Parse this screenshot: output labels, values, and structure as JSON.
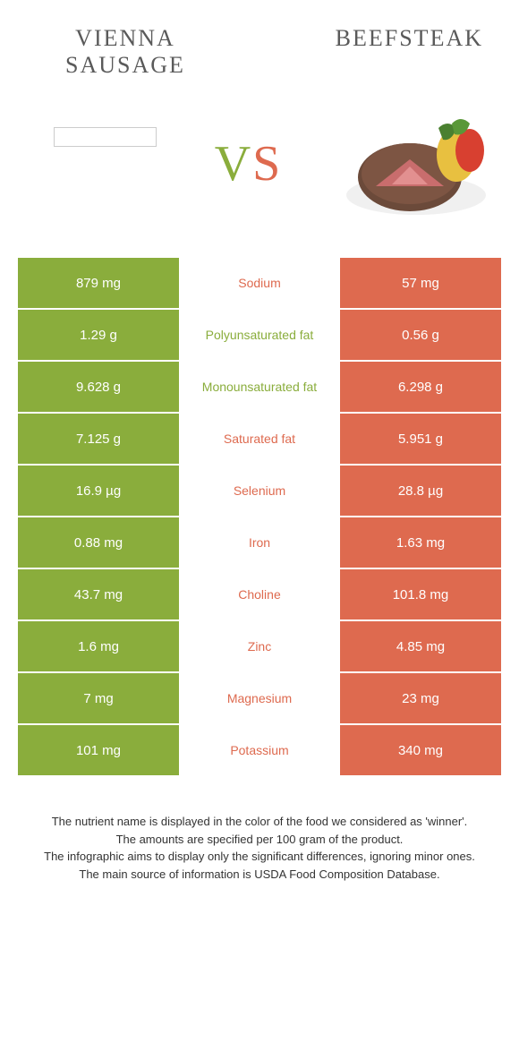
{
  "header": {
    "left_title": "VIENNA SAUSAGE",
    "right_title": "BEEFSTEAK",
    "vs_v": "V",
    "vs_s": "S"
  },
  "colors": {
    "left": "#8aad3c",
    "right": "#de6a4f",
    "text": "#333333",
    "title": "#5a5a5a",
    "bg": "#ffffff"
  },
  "table": {
    "rows": [
      {
        "left": "879 mg",
        "label": "Sodium",
        "right": "57 mg",
        "winner": "right"
      },
      {
        "left": "1.29 g",
        "label": "Polyunsaturated fat",
        "right": "0.56 g",
        "winner": "left"
      },
      {
        "left": "9.628 g",
        "label": "Monounsaturated fat",
        "right": "6.298 g",
        "winner": "left"
      },
      {
        "left": "7.125 g",
        "label": "Saturated fat",
        "right": "5.951 g",
        "winner": "right"
      },
      {
        "left": "16.9 µg",
        "label": "Selenium",
        "right": "28.8 µg",
        "winner": "right"
      },
      {
        "left": "0.88 mg",
        "label": "Iron",
        "right": "1.63 mg",
        "winner": "right"
      },
      {
        "left": "43.7 mg",
        "label": "Choline",
        "right": "101.8 mg",
        "winner": "right"
      },
      {
        "left": "1.6 mg",
        "label": "Zinc",
        "right": "4.85 mg",
        "winner": "right"
      },
      {
        "left": "7 mg",
        "label": "Magnesium",
        "right": "23 mg",
        "winner": "right"
      },
      {
        "left": "101 mg",
        "label": "Potassium",
        "right": "340 mg",
        "winner": "right"
      }
    ]
  },
  "footer": {
    "line1": "The nutrient name is displayed in the color of the food we considered as 'winner'.",
    "line2": "The amounts are specified per 100 gram of the product.",
    "line3": "The infographic aims to display only the significant differences, ignoring minor ones.",
    "line4": "The main source of information is USDA Food Composition Database."
  }
}
